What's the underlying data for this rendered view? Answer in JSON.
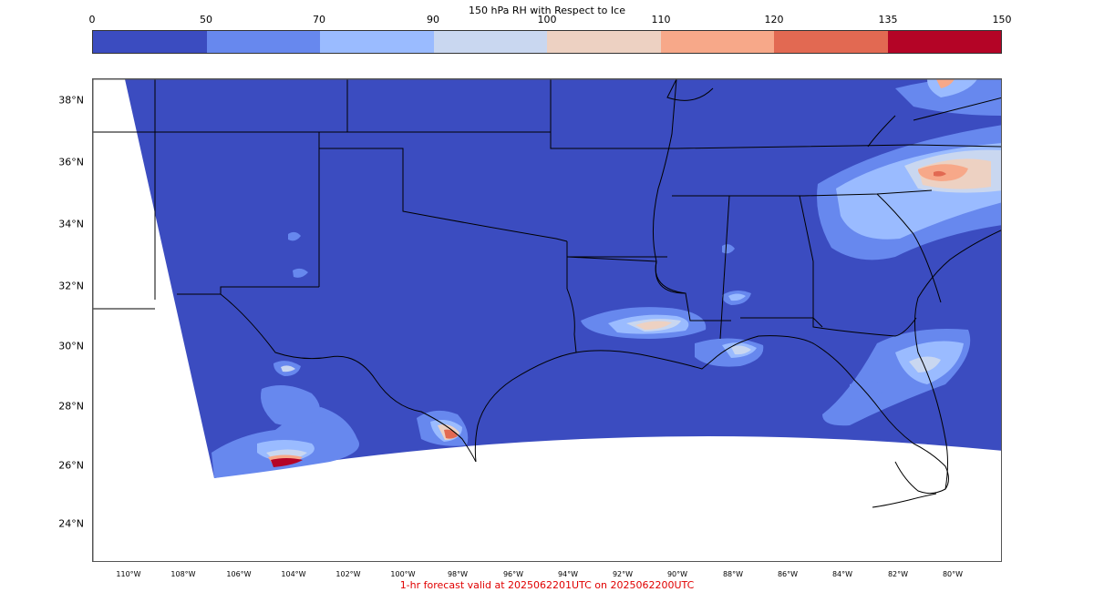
{
  "colorbar": {
    "title": "150 hPa RH with Respect to Ice",
    "ticks": [
      "0",
      "50",
      "70",
      "90",
      "100",
      "110",
      "120",
      "135",
      "150"
    ],
    "colors": [
      "#3b4cc0",
      "#6788ee",
      "#9abbff",
      "#c9d7f0",
      "#edd1c2",
      "#f7a889",
      "#e26952",
      "#b40426"
    ]
  },
  "map": {
    "lat_labels": [
      "38°N",
      "36°N",
      "34°N",
      "32°N",
      "30°N",
      "28°N",
      "26°N",
      "24°N"
    ],
    "lon_labels": [
      "110°W",
      "108°W",
      "106°W",
      "104°W",
      "102°W",
      "100°W",
      "98°W",
      "96°W",
      "94°W",
      "92°W",
      "90°W",
      "88°W",
      "86°W",
      "84°W",
      "82°W",
      "80°W"
    ]
  },
  "caption": "1-hr forecast valid at 2025062201UTC on 2025062200UTC"
}
